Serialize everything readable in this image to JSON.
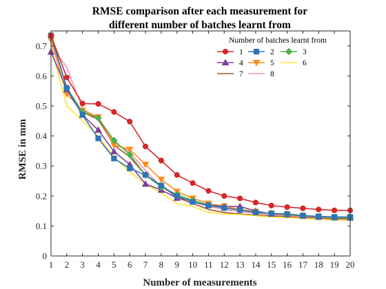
{
  "chart_data": {
    "type": "line",
    "title_lines": [
      "RMSE comparison after each measurement for",
      "different number of batches learnt from"
    ],
    "xlabel": "Number of measurements",
    "ylabel": "RMSE in mm",
    "xlim": [
      1,
      20
    ],
    "ylim": [
      0,
      0.75
    ],
    "xticks": [
      1,
      2,
      3,
      4,
      5,
      6,
      7,
      8,
      9,
      10,
      11,
      12,
      13,
      14,
      15,
      16,
      17,
      18,
      19,
      20
    ],
    "yticks": [
      0,
      0.1,
      0.2,
      0.3,
      0.4,
      0.5,
      0.6,
      0.7
    ],
    "ytick_labels": [
      "0",
      "0.1",
      "0.2",
      "0.3",
      "0.4",
      "0.5",
      "0.6",
      "0.7"
    ],
    "grid": false,
    "legend": {
      "title": "Number of batches learnt from",
      "position": "top-right"
    },
    "x": [
      1,
      2,
      3,
      4,
      5,
      6,
      7,
      8,
      9,
      10,
      11,
      12,
      13,
      14,
      15,
      16,
      17,
      18,
      19,
      20
    ],
    "series": [
      {
        "name": "1",
        "color": "#d62728",
        "marker": "circle",
        "values": [
          0.735,
          0.595,
          0.508,
          0.507,
          0.48,
          0.448,
          0.365,
          0.318,
          0.27,
          0.243,
          0.217,
          0.2,
          0.192,
          0.178,
          0.168,
          0.163,
          0.159,
          0.155,
          0.152,
          0.152
        ]
      },
      {
        "name": "2",
        "color": "#2e75b6",
        "marker": "square",
        "values": [
          0.735,
          0.56,
          0.47,
          0.392,
          0.325,
          0.292,
          0.27,
          0.235,
          0.2,
          0.18,
          0.168,
          0.16,
          0.153,
          0.145,
          0.142,
          0.14,
          0.135,
          0.132,
          0.13,
          0.13
        ]
      },
      {
        "name": "3",
        "color": "#4daf4a",
        "marker": "diamond",
        "values": [
          0.735,
          0.56,
          0.48,
          0.46,
          0.385,
          0.338,
          0.27,
          0.23,
          0.205,
          0.185,
          0.17,
          0.16,
          0.153,
          0.146,
          0.142,
          0.138,
          0.134,
          0.131,
          0.128,
          0.127
        ]
      },
      {
        "name": "4",
        "color": "#7e3f98",
        "marker": "triangle-up",
        "values": [
          0.68,
          0.555,
          0.47,
          0.42,
          0.348,
          0.305,
          0.24,
          0.22,
          0.193,
          0.185,
          0.17,
          0.165,
          0.165,
          0.15,
          0.14,
          0.138,
          0.133,
          0.13,
          0.128,
          0.127
        ]
      },
      {
        "name": "5",
        "color": "#ff8c1a",
        "marker": "triangle-down",
        "values": [
          0.72,
          0.54,
          0.485,
          0.463,
          0.37,
          0.355,
          0.305,
          0.255,
          0.215,
          0.192,
          0.175,
          0.166,
          0.155,
          0.148,
          0.141,
          0.136,
          0.133,
          0.13,
          0.128,
          0.127
        ]
      },
      {
        "name": "6",
        "color": "#ffe333",
        "marker": "none",
        "values": [
          0.7,
          0.5,
          0.45,
          0.4,
          0.33,
          0.28,
          0.24,
          0.21,
          0.175,
          0.165,
          0.145,
          0.14,
          0.138,
          0.134,
          0.13,
          0.128,
          0.125,
          0.123,
          0.12,
          0.12
        ]
      },
      {
        "name": "7",
        "color": "#a0522d",
        "marker": "none",
        "values": [
          0.735,
          0.56,
          0.48,
          0.455,
          0.37,
          0.33,
          0.27,
          0.235,
          0.195,
          0.175,
          0.155,
          0.145,
          0.14,
          0.136,
          0.133,
          0.13,
          0.127,
          0.125,
          0.123,
          0.123
        ]
      },
      {
        "name": "8",
        "color": "#f48fb1",
        "marker": "none",
        "values": [
          0.7,
          0.63,
          0.49,
          0.46,
          0.38,
          0.345,
          0.285,
          0.23,
          0.2,
          0.18,
          0.165,
          0.155,
          0.148,
          0.142,
          0.137,
          0.133,
          0.13,
          0.127,
          0.125,
          0.125
        ]
      }
    ]
  }
}
